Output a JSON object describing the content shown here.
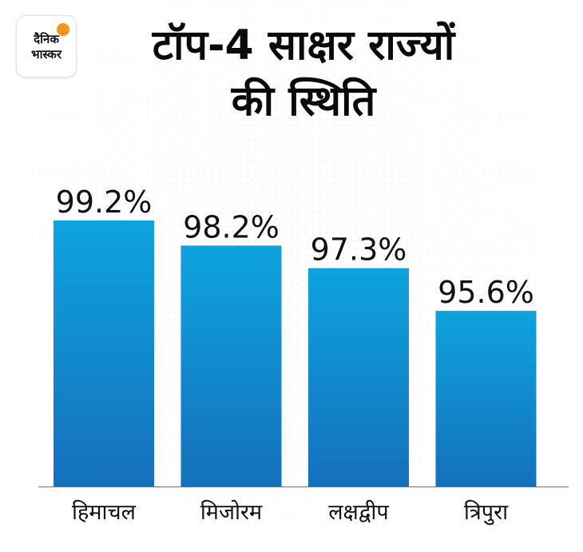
{
  "logo": {
    "line1": "दैनिक",
    "line2": "भास्कर",
    "sun_color": "#f7941d"
  },
  "title": {
    "line1": "टॉप-4 साक्षर राज्यों",
    "line2": "की स्थिति"
  },
  "chart_data": {
    "type": "bar",
    "categories": [
      "हिमाचल",
      "मिजोरम",
      "लक्षद्वीप",
      "त्रिपुरा"
    ],
    "values": [
      99.2,
      98.2,
      97.3,
      95.6
    ],
    "value_labels": [
      "99.2%",
      "98.2%",
      "97.3%",
      "95.6%"
    ],
    "title": "टॉप-4 साक्षर राज्यों की स्थिति",
    "xlabel": "",
    "ylabel": "",
    "grid": false,
    "bar_color_top": "#0ea3df",
    "bar_color_bottom": "#1570bb"
  }
}
